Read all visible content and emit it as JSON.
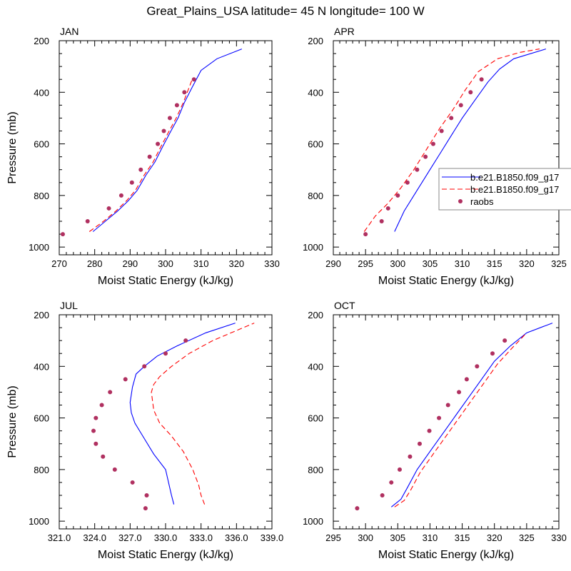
{
  "figure": {
    "title": "Great_Plains_USA  latitude= 45 N longitude= 100 W"
  },
  "legend": {
    "entries": [
      {
        "label": "b.e21.B1850.f09_g17",
        "style": "solid",
        "color": "#0000ff"
      },
      {
        "label": "b.e21.B1850.f09_g17",
        "style": "dashed",
        "color": "#ff0000"
      },
      {
        "label": "raobs",
        "style": "marker",
        "color": "#b03060"
      }
    ]
  },
  "chart_data": [
    {
      "type": "line",
      "panel": "JAN",
      "title": "JAN",
      "xlabel": "Moist Static Energy (kJ/kg)",
      "ylabel": "Pressure (mb)",
      "xlim": [
        270,
        330
      ],
      "ylim": [
        1030,
        200
      ],
      "xticks": [
        270,
        280,
        290,
        300,
        310,
        320,
        330
      ],
      "xtick_labels": [
        "270",
        "280",
        "290",
        "300",
        "310",
        "320",
        "330"
      ],
      "yticks": [
        200,
        400,
        600,
        800,
        1000
      ],
      "ytick_labels": [
        "200",
        "400",
        "600",
        "800",
        "1000"
      ],
      "series": [
        {
          "name": "b.e21.B1850.f09_g17",
          "style": "solid",
          "color": "#0000ff",
          "x": [
            279.5,
            283,
            286.5,
            289.5,
            292,
            294.5,
            297,
            299.2,
            301.5,
            303.5,
            305.3,
            307.5,
            310,
            314.5,
            321.5
          ],
          "y": [
            940,
            900,
            860,
            820,
            780,
            720,
            670,
            610,
            550,
            500,
            440,
            380,
            315,
            270,
            232
          ]
        },
        {
          "name": "b.e21.B1850.f09_g17",
          "style": "dashed",
          "color": "#ff0000",
          "x": [
            278.5,
            282.5,
            286,
            289,
            291.5,
            294,
            296.5,
            298.7,
            301,
            303,
            305,
            307.5
          ],
          "y": [
            940,
            900,
            860,
            820,
            780,
            720,
            670,
            610,
            550,
            500,
            440,
            350
          ]
        },
        {
          "name": "raobs",
          "style": "marker",
          "color": "#b03060",
          "x": [
            271,
            278,
            284,
            287.5,
            290.5,
            293,
            295.5,
            297.8,
            299.5,
            301.2,
            303.2,
            305.3,
            308
          ],
          "y": [
            950,
            900,
            850,
            800,
            750,
            700,
            650,
            600,
            550,
            500,
            450,
            400,
            350
          ]
        }
      ]
    },
    {
      "type": "line",
      "panel": "APR",
      "title": "APR",
      "xlabel": "Moist Static Energy (kJ/kg)",
      "ylabel": "",
      "xlim": [
        290,
        325
      ],
      "ylim": [
        1030,
        200
      ],
      "xticks": [
        290,
        295,
        300,
        305,
        310,
        315,
        320,
        325
      ],
      "xtick_labels": [
        "290",
        "295",
        "300",
        "305",
        "310",
        "315",
        "320",
        "325"
      ],
      "yticks": [
        200,
        400,
        600,
        800,
        1000
      ],
      "ytick_labels": [
        "200",
        "400",
        "600",
        "800",
        "1000"
      ],
      "series": [
        {
          "name": "b.e21.B1850.f09_g17",
          "style": "solid",
          "color": "#0000ff",
          "x": [
            299.5,
            301,
            303,
            305,
            306.5,
            308,
            310,
            312,
            314,
            315.8,
            318,
            323
          ],
          "y": [
            940,
            860,
            780,
            700,
            640,
            580,
            500,
            430,
            360,
            310,
            270,
            232
          ]
        },
        {
          "name": "b.e21.B1850.f09_g17",
          "style": "dashed",
          "color": "#ff0000",
          "x": [
            294.8,
            296.5,
            298.5,
            300.5,
            302.5,
            304.5,
            306.5,
            308.5,
            310.5,
            312.5,
            315.5,
            319,
            322
          ],
          "y": [
            940,
            880,
            830,
            770,
            700,
            620,
            540,
            470,
            390,
            320,
            270,
            245,
            232
          ]
        },
        {
          "name": "raobs",
          "style": "marker",
          "color": "#b03060",
          "x": [
            295,
            297.5,
            298.5,
            300,
            301.5,
            303,
            304.3,
            305.5,
            306.8,
            308.3,
            309.8,
            311.3,
            313
          ],
          "y": [
            950,
            900,
            850,
            800,
            750,
            700,
            650,
            600,
            550,
            500,
            450,
            400,
            350
          ]
        }
      ]
    },
    {
      "type": "line",
      "panel": "JUL",
      "title": "JUL",
      "xlabel": "Moist Static Energy (kJ/kg)",
      "ylabel": "Pressure (mb)",
      "xlim": [
        321.0,
        339.0
      ],
      "ylim": [
        1030,
        200
      ],
      "xticks": [
        321,
        324,
        327,
        330,
        333,
        336,
        339
      ],
      "xtick_labels": [
        "321.0",
        "324.0",
        "327.0",
        "330.0",
        "333.0",
        "336.0",
        "339.0"
      ],
      "yticks": [
        200,
        400,
        600,
        800,
        1000
      ],
      "ytick_labels": [
        "200",
        "400",
        "600",
        "800",
        "1000"
      ],
      "series": [
        {
          "name": "b.e21.B1850.f09_g17",
          "style": "solid",
          "color": "#0000ff",
          "x": [
            330.7,
            330.5,
            330.4,
            330,
            329,
            328.2,
            327.4,
            327.1,
            327.0,
            327.2,
            327.5,
            328.2,
            329.3,
            331,
            333.4,
            335.9
          ],
          "y": [
            935,
            900,
            880,
            800,
            740,
            680,
            620,
            580,
            540,
            480,
            430,
            400,
            360,
            320,
            270,
            232
          ]
        },
        {
          "name": "b.e21.B1850.f09_g17",
          "style": "dashed",
          "color": "#ff0000",
          "x": [
            333.3,
            333,
            332.8,
            332.3,
            331.5,
            330.5,
            329.5,
            329.0,
            328.8,
            329.0,
            329.5,
            330.5,
            332,
            334,
            337.5
          ],
          "y": [
            935,
            900,
            860,
            800,
            730,
            670,
            620,
            570,
            500,
            470,
            440,
            400,
            350,
            300,
            232
          ]
        },
        {
          "name": "raobs",
          "style": "marker",
          "color": "#b03060",
          "x": [
            328.3,
            328.4,
            327.2,
            325.7,
            324.7,
            324.1,
            323.9,
            324.1,
            324.6,
            325.3,
            326.6,
            328.2,
            330.0,
            331.7
          ],
          "y": [
            950,
            900,
            850,
            800,
            750,
            700,
            650,
            600,
            550,
            500,
            450,
            400,
            350,
            300
          ]
        }
      ]
    },
    {
      "type": "line",
      "panel": "OCT",
      "title": "OCT",
      "xlabel": "Moist Static Energy (kJ/kg)",
      "ylabel": "",
      "xlim": [
        295,
        330
      ],
      "ylim": [
        1030,
        200
      ],
      "xticks": [
        295,
        300,
        305,
        310,
        315,
        320,
        325,
        330
      ],
      "xtick_labels": [
        "295",
        "300",
        "305",
        "310",
        "315",
        "320",
        "325",
        "330"
      ],
      "yticks": [
        200,
        400,
        600,
        800,
        1000
      ],
      "ytick_labels": [
        "200",
        "400",
        "600",
        "800",
        "1000"
      ],
      "series": [
        {
          "name": "b.e21.B1850.f09_g17",
          "style": "solid",
          "color": "#0000ff",
          "x": [
            304,
            305.5,
            306.5,
            308,
            310,
            312,
            314,
            316,
            318,
            320,
            322.5,
            325,
            329
          ],
          "y": [
            945,
            915,
            870,
            800,
            730,
            660,
            590,
            520,
            450,
            380,
            320,
            270,
            232
          ]
        },
        {
          "name": "b.e21.B1850.f09_g17",
          "style": "dashed",
          "color": "#ff0000",
          "x": [
            304.5,
            306,
            307,
            308.5,
            310.5,
            312.5,
            314.5,
            316.5,
            318.5,
            320.5,
            322.7,
            325
          ],
          "y": [
            945,
            920,
            880,
            810,
            740,
            670,
            600,
            530,
            460,
            390,
            330,
            270
          ]
        },
        {
          "name": "raobs",
          "style": "marker",
          "color": "#b03060",
          "x": [
            298.7,
            302.6,
            304.0,
            305.3,
            306.9,
            308.4,
            309.9,
            311.4,
            312.8,
            314.5,
            315.7,
            317.3,
            319.7,
            321.6
          ],
          "y": [
            950,
            900,
            850,
            800,
            750,
            700,
            650,
            600,
            550,
            500,
            450,
            400,
            350,
            300
          ]
        }
      ]
    }
  ]
}
